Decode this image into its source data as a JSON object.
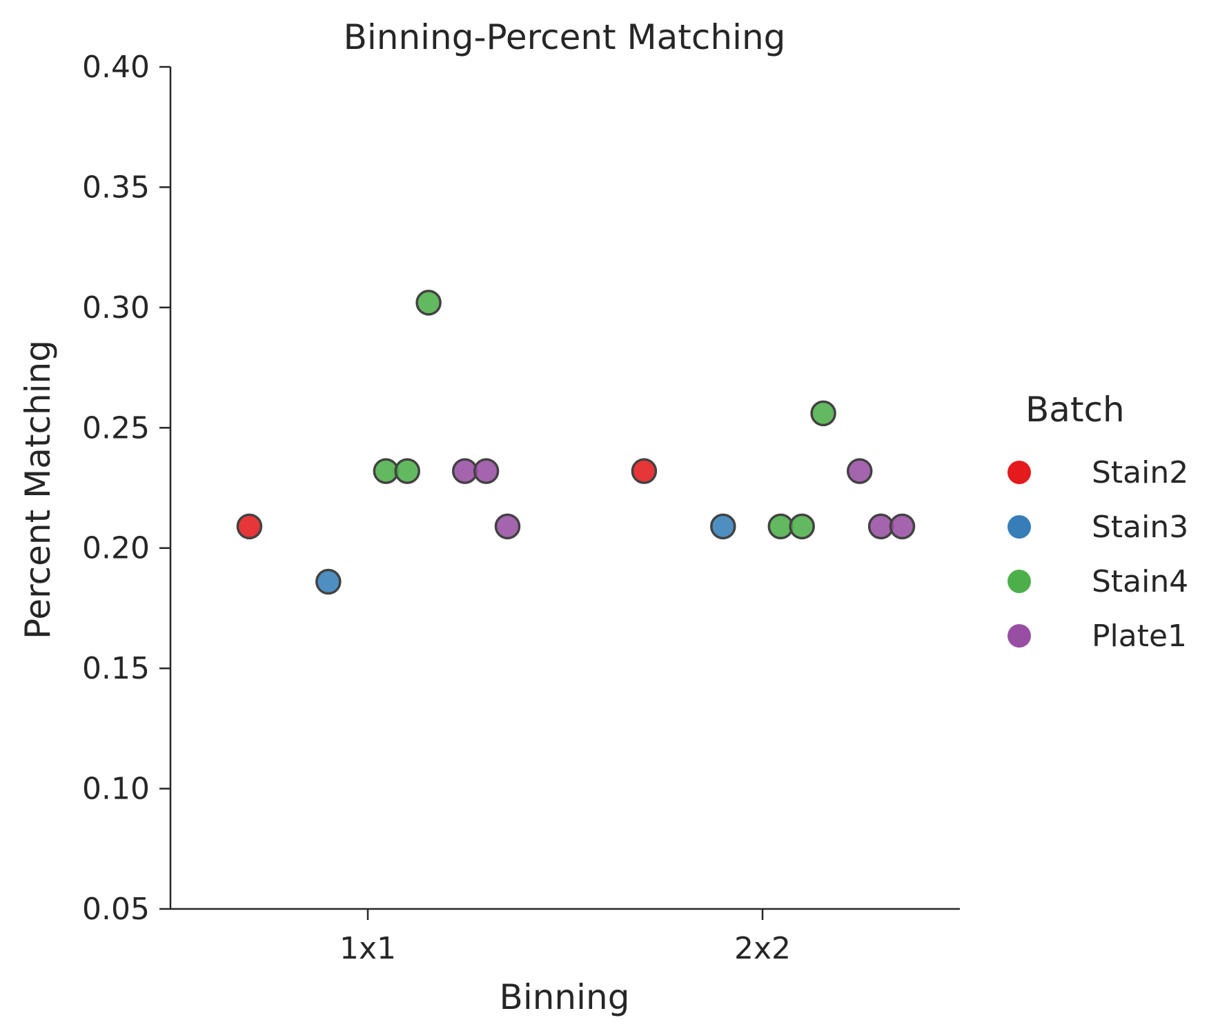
{
  "chart_data": {
    "type": "scatter",
    "title": "Binning-Percent Matching",
    "xlabel": "Binning",
    "ylabel": "Percent Matching",
    "categories": [
      "1x1",
      "2x2"
    ],
    "ylim": [
      0.05,
      0.4
    ],
    "yticks": [
      "0.05",
      "0.10",
      "0.15",
      "0.20",
      "0.25",
      "0.30",
      "0.35",
      "0.40"
    ],
    "yticks_values": [
      0.05,
      0.1,
      0.15,
      0.2,
      0.25,
      0.3,
      0.35,
      0.4
    ],
    "grid": false,
    "legend": {
      "title": "Batch",
      "placement": "right"
    },
    "series": [
      {
        "name": "Stain2",
        "color": "#e41a1c",
        "points": [
          {
            "x": "1x1",
            "y": 0.209
          },
          {
            "x": "2x2",
            "y": 0.232
          }
        ]
      },
      {
        "name": "Stain3",
        "color": "#377eb8",
        "points": [
          {
            "x": "1x1",
            "y": 0.186
          },
          {
            "x": "2x2",
            "y": 0.209
          }
        ]
      },
      {
        "name": "Stain4",
        "color": "#4daf4a",
        "points": [
          {
            "x": "1x1",
            "y": 0.232
          },
          {
            "x": "1x1",
            "y": 0.232
          },
          {
            "x": "1x1",
            "y": 0.302
          },
          {
            "x": "2x2",
            "y": 0.209
          },
          {
            "x": "2x2",
            "y": 0.209
          },
          {
            "x": "2x2",
            "y": 0.256
          }
        ]
      },
      {
        "name": "Plate1",
        "color": "#984ea3",
        "points": [
          {
            "x": "1x1",
            "y": 0.232
          },
          {
            "x": "1x1",
            "y": 0.232
          },
          {
            "x": "1x1",
            "y": 0.209
          },
          {
            "x": "2x2",
            "y": 0.232
          },
          {
            "x": "2x2",
            "y": 0.209
          },
          {
            "x": "2x2",
            "y": 0.209
          }
        ]
      }
    ]
  }
}
